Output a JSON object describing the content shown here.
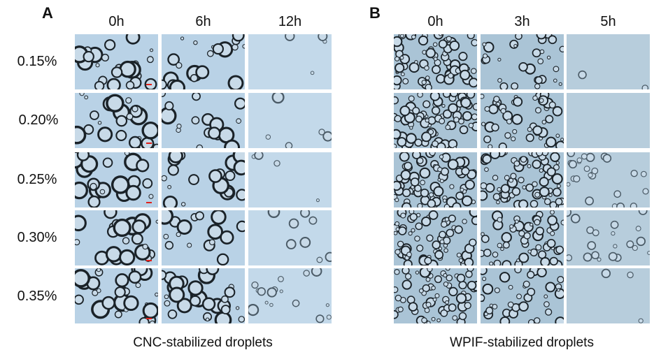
{
  "panels": [
    {
      "letter": "A",
      "columns": [
        "0h",
        "6h",
        "12h"
      ],
      "rows": [
        "0.15%",
        "0.20%",
        "0.25%",
        "0.30%",
        "0.35%"
      ],
      "caption": "CNC-stabilized droplets",
      "scale_bar_color": "#e0201a",
      "background_color": "#b9d2e6"
    },
    {
      "letter": "B",
      "columns": [
        "0h",
        "3h",
        "5h"
      ],
      "caption": "WPIF-stabilized droplets",
      "background_color": "#aac4d6"
    }
  ]
}
